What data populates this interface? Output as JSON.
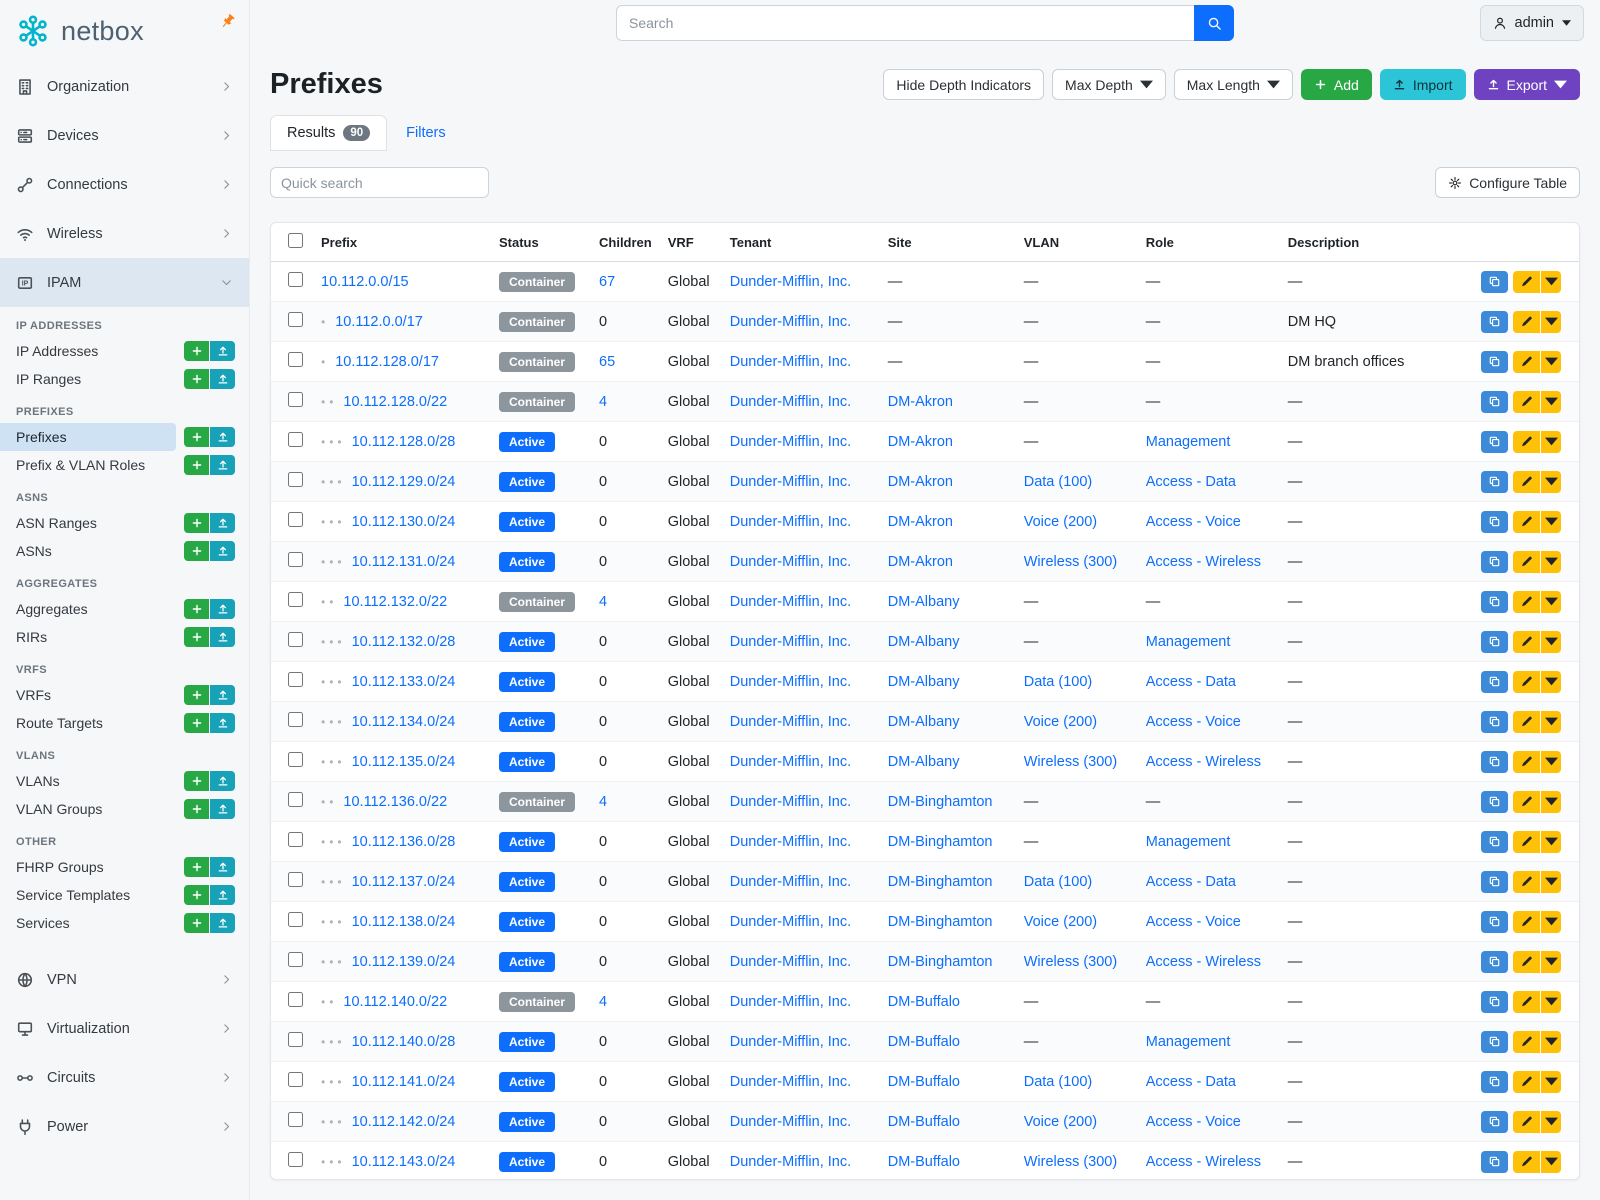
{
  "colors": {
    "brand_teal": "#00b5cc",
    "pin_orange": "#fd7e14",
    "link": "#0d6efd",
    "add_green": "#28a745",
    "upload_teal": "#17a2b8",
    "import_cyan": "#2cc5d8",
    "export_purple": "#6f42c1",
    "edit_yellow": "#ffc107",
    "status": {
      "Active": "#0d6efd",
      "Container": "#8d959d"
    }
  },
  "brand": {
    "name": "netbox"
  },
  "topbar": {
    "search_placeholder": "Search",
    "user_label": "admin"
  },
  "sidebar": {
    "top_items": [
      {
        "label": "Organization",
        "icon": "building-icon"
      },
      {
        "label": "Devices",
        "icon": "server-icon"
      },
      {
        "label": "Connections",
        "icon": "cable-icon"
      },
      {
        "label": "Wireless",
        "icon": "wifi-icon"
      }
    ],
    "ipam": {
      "label": "IPAM",
      "icon": "ipam-icon"
    },
    "groups": [
      {
        "header": "IP ADDRESSES",
        "items": [
          {
            "label": "IP Addresses"
          },
          {
            "label": "IP Ranges"
          }
        ]
      },
      {
        "header": "PREFIXES",
        "items": [
          {
            "label": "Prefixes",
            "active": true
          },
          {
            "label": "Prefix & VLAN Roles"
          }
        ]
      },
      {
        "header": "ASNS",
        "items": [
          {
            "label": "ASN Ranges"
          },
          {
            "label": "ASNs"
          }
        ]
      },
      {
        "header": "AGGREGATES",
        "items": [
          {
            "label": "Aggregates"
          },
          {
            "label": "RIRs"
          }
        ]
      },
      {
        "header": "VRFS",
        "items": [
          {
            "label": "VRFs"
          },
          {
            "label": "Route Targets"
          }
        ]
      },
      {
        "header": "VLANS",
        "items": [
          {
            "label": "VLANs"
          },
          {
            "label": "VLAN Groups"
          }
        ]
      },
      {
        "header": "OTHER",
        "items": [
          {
            "label": "FHRP Groups"
          },
          {
            "label": "Service Templates"
          },
          {
            "label": "Services"
          }
        ]
      }
    ],
    "bottom_items": [
      {
        "label": "VPN",
        "icon": "vpn-icon"
      },
      {
        "label": "Virtualization",
        "icon": "monitor-icon"
      },
      {
        "label": "Circuits",
        "icon": "circuit-icon"
      },
      {
        "label": "Power",
        "icon": "power-icon"
      }
    ]
  },
  "page": {
    "title": "Prefixes",
    "buttons": {
      "hide_depth": "Hide Depth Indicators",
      "max_depth": "Max Depth",
      "max_length": "Max Length",
      "add": "Add",
      "import": "Import",
      "export": "Export"
    },
    "tabs": [
      {
        "label": "Results",
        "badge": "90",
        "active": true
      },
      {
        "label": "Filters",
        "active": false
      }
    ],
    "quick_search_placeholder": "Quick search",
    "configure_table": "Configure Table"
  },
  "table": {
    "columns": [
      "Prefix",
      "Status",
      "Children",
      "VRF",
      "Tenant",
      "Site",
      "VLAN",
      "Role",
      "Description"
    ],
    "rows": [
      {
        "depth": 0,
        "prefix": "10.112.0.0/15",
        "status": "Container",
        "children": "67",
        "vrf": "Global",
        "tenant": "Dunder-Mifflin, Inc.",
        "site": "—",
        "vlan": "—",
        "role": "—",
        "description": "—"
      },
      {
        "depth": 1,
        "prefix": "10.112.0.0/17",
        "status": "Container",
        "children": "0",
        "vrf": "Global",
        "tenant": "Dunder-Mifflin, Inc.",
        "site": "—",
        "vlan": "—",
        "role": "—",
        "description": "DM HQ"
      },
      {
        "depth": 1,
        "prefix": "10.112.128.0/17",
        "status": "Container",
        "children": "65",
        "vrf": "Global",
        "tenant": "Dunder-Mifflin, Inc.",
        "site": "—",
        "vlan": "—",
        "role": "—",
        "description": "DM branch offices"
      },
      {
        "depth": 2,
        "prefix": "10.112.128.0/22",
        "status": "Container",
        "children": "4",
        "vrf": "Global",
        "tenant": "Dunder-Mifflin, Inc.",
        "site": "DM-Akron",
        "vlan": "—",
        "role": "—",
        "description": "—"
      },
      {
        "depth": 3,
        "prefix": "10.112.128.0/28",
        "status": "Active",
        "children": "0",
        "vrf": "Global",
        "tenant": "Dunder-Mifflin, Inc.",
        "site": "DM-Akron",
        "vlan": "—",
        "role": "Management",
        "description": "—"
      },
      {
        "depth": 3,
        "prefix": "10.112.129.0/24",
        "status": "Active",
        "children": "0",
        "vrf": "Global",
        "tenant": "Dunder-Mifflin, Inc.",
        "site": "DM-Akron",
        "vlan": "Data (100)",
        "role": "Access - Data",
        "description": "—"
      },
      {
        "depth": 3,
        "prefix": "10.112.130.0/24",
        "status": "Active",
        "children": "0",
        "vrf": "Global",
        "tenant": "Dunder-Mifflin, Inc.",
        "site": "DM-Akron",
        "vlan": "Voice (200)",
        "role": "Access - Voice",
        "description": "—"
      },
      {
        "depth": 3,
        "prefix": "10.112.131.0/24",
        "status": "Active",
        "children": "0",
        "vrf": "Global",
        "tenant": "Dunder-Mifflin, Inc.",
        "site": "DM-Akron",
        "vlan": "Wireless (300)",
        "role": "Access - Wireless",
        "description": "—"
      },
      {
        "depth": 2,
        "prefix": "10.112.132.0/22",
        "status": "Container",
        "children": "4",
        "vrf": "Global",
        "tenant": "Dunder-Mifflin, Inc.",
        "site": "DM-Albany",
        "vlan": "—",
        "role": "—",
        "description": "—"
      },
      {
        "depth": 3,
        "prefix": "10.112.132.0/28",
        "status": "Active",
        "children": "0",
        "vrf": "Global",
        "tenant": "Dunder-Mifflin, Inc.",
        "site": "DM-Albany",
        "vlan": "—",
        "role": "Management",
        "description": "—"
      },
      {
        "depth": 3,
        "prefix": "10.112.133.0/24",
        "status": "Active",
        "children": "0",
        "vrf": "Global",
        "tenant": "Dunder-Mifflin, Inc.",
        "site": "DM-Albany",
        "vlan": "Data (100)",
        "role": "Access - Data",
        "description": "—"
      },
      {
        "depth": 3,
        "prefix": "10.112.134.0/24",
        "status": "Active",
        "children": "0",
        "vrf": "Global",
        "tenant": "Dunder-Mifflin, Inc.",
        "site": "DM-Albany",
        "vlan": "Voice (200)",
        "role": "Access - Voice",
        "description": "—"
      },
      {
        "depth": 3,
        "prefix": "10.112.135.0/24",
        "status": "Active",
        "children": "0",
        "vrf": "Global",
        "tenant": "Dunder-Mifflin, Inc.",
        "site": "DM-Albany",
        "vlan": "Wireless (300)",
        "role": "Access - Wireless",
        "description": "—"
      },
      {
        "depth": 2,
        "prefix": "10.112.136.0/22",
        "status": "Container",
        "children": "4",
        "vrf": "Global",
        "tenant": "Dunder-Mifflin, Inc.",
        "site": "DM-Binghamton",
        "vlan": "—",
        "role": "—",
        "description": "—"
      },
      {
        "depth": 3,
        "prefix": "10.112.136.0/28",
        "status": "Active",
        "children": "0",
        "vrf": "Global",
        "tenant": "Dunder-Mifflin, Inc.",
        "site": "DM-Binghamton",
        "vlan": "—",
        "role": "Management",
        "description": "—"
      },
      {
        "depth": 3,
        "prefix": "10.112.137.0/24",
        "status": "Active",
        "children": "0",
        "vrf": "Global",
        "tenant": "Dunder-Mifflin, Inc.",
        "site": "DM-Binghamton",
        "vlan": "Data (100)",
        "role": "Access - Data",
        "description": "—"
      },
      {
        "depth": 3,
        "prefix": "10.112.138.0/24",
        "status": "Active",
        "children": "0",
        "vrf": "Global",
        "tenant": "Dunder-Mifflin, Inc.",
        "site": "DM-Binghamton",
        "vlan": "Voice (200)",
        "role": "Access - Voice",
        "description": "—"
      },
      {
        "depth": 3,
        "prefix": "10.112.139.0/24",
        "status": "Active",
        "children": "0",
        "vrf": "Global",
        "tenant": "Dunder-Mifflin, Inc.",
        "site": "DM-Binghamton",
        "vlan": "Wireless (300)",
        "role": "Access - Wireless",
        "description": "—"
      },
      {
        "depth": 2,
        "prefix": "10.112.140.0/22",
        "status": "Container",
        "children": "4",
        "vrf": "Global",
        "tenant": "Dunder-Mifflin, Inc.",
        "site": "DM-Buffalo",
        "vlan": "—",
        "role": "—",
        "description": "—"
      },
      {
        "depth": 3,
        "prefix": "10.112.140.0/28",
        "status": "Active",
        "children": "0",
        "vrf": "Global",
        "tenant": "Dunder-Mifflin, Inc.",
        "site": "DM-Buffalo",
        "vlan": "—",
        "role": "Management",
        "description": "—"
      },
      {
        "depth": 3,
        "prefix": "10.112.141.0/24",
        "status": "Active",
        "children": "0",
        "vrf": "Global",
        "tenant": "Dunder-Mifflin, Inc.",
        "site": "DM-Buffalo",
        "vlan": "Data (100)",
        "role": "Access - Data",
        "description": "—"
      },
      {
        "depth": 3,
        "prefix": "10.112.142.0/24",
        "status": "Active",
        "children": "0",
        "vrf": "Global",
        "tenant": "Dunder-Mifflin, Inc.",
        "site": "DM-Buffalo",
        "vlan": "Voice (200)",
        "role": "Access - Voice",
        "description": "—"
      },
      {
        "depth": 3,
        "prefix": "10.112.143.0/24",
        "status": "Active",
        "children": "0",
        "vrf": "Global",
        "tenant": "Dunder-Mifflin, Inc.",
        "site": "DM-Buffalo",
        "vlan": "Wireless (300)",
        "role": "Access - Wireless",
        "description": "—"
      }
    ]
  }
}
